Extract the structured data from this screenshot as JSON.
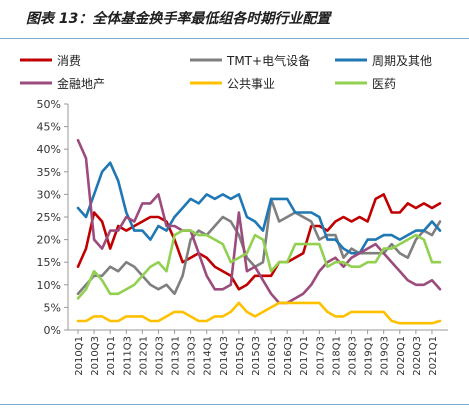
{
  "figure": {
    "title": "图表 13：全体基金换手率最低组各时期行业配置"
  },
  "chart_data": {
    "type": "line",
    "title": "图表 13：全体基金换手率最低组各时期行业配置",
    "xlabel": "",
    "ylabel": "",
    "ylim": [
      0,
      50
    ],
    "yticks": [
      "0%",
      "5%",
      "10%",
      "15%",
      "20%",
      "25%",
      "30%",
      "35%",
      "40%",
      "45%",
      "50%"
    ],
    "grid": false,
    "legend_position": "top",
    "x": [
      "2010Q1",
      "2010Q2",
      "2010Q3",
      "2010Q4",
      "2011Q1",
      "2011Q2",
      "2011Q3",
      "2011Q4",
      "2012Q1",
      "2012Q2",
      "2012Q3",
      "2012Q4",
      "2013Q1",
      "2013Q2",
      "2013Q3",
      "2013Q4",
      "2014Q1",
      "2014Q2",
      "2014Q3",
      "2014Q4",
      "2015Q1",
      "2015Q2",
      "2015Q3",
      "2015Q4",
      "2016Q1",
      "2016Q2",
      "2016Q3",
      "2016Q4",
      "2017Q1",
      "2017Q2",
      "2017Q3",
      "2017Q4",
      "2018Q1",
      "2018Q2",
      "2018Q3",
      "2018Q4",
      "2019Q1",
      "2019Q2",
      "2019Q3",
      "2019Q4",
      "2020Q1",
      "2020Q2",
      "2020Q3",
      "2020Q4",
      "2021Q1",
      "2021Q2"
    ],
    "xtick_labels": [
      "2010Q1",
      "2010Q3",
      "2011Q1",
      "2011Q3",
      "2012Q1",
      "2012Q3",
      "2013Q1",
      "2013Q3",
      "2014Q1",
      "2014Q3",
      "2015Q1",
      "2015Q3",
      "2016Q1",
      "2016Q3",
      "2017Q1",
      "2017Q3",
      "2018Q1",
      "2018Q3",
      "2019Q1",
      "2019Q3",
      "2020Q1",
      "2020Q3",
      "2021Q1"
    ],
    "series": [
      {
        "name": "消费",
        "color": "#c00000",
        "values": [
          14,
          18,
          26,
          24,
          18,
          23,
          22,
          23,
          24,
          25,
          25,
          24,
          20,
          15,
          16,
          17,
          16,
          14,
          13,
          12,
          9,
          10,
          12,
          12,
          12,
          15,
          15,
          16,
          17,
          23,
          23,
          22,
          24,
          25,
          24,
          25,
          24,
          29,
          30,
          26,
          26,
          28,
          27,
          28,
          27,
          28
        ]
      },
      {
        "name": "TMT+电气设备",
        "color": "#7f7f7f",
        "values": [
          8,
          10,
          12,
          12,
          14,
          13,
          15,
          14,
          12,
          10,
          9,
          10,
          8,
          12,
          20,
          22,
          21,
          23,
          25,
          24,
          21,
          16,
          14,
          15,
          29,
          24,
          25,
          26,
          25,
          24,
          20,
          21,
          21,
          16,
          18,
          17,
          17,
          17,
          17,
          19,
          17,
          16,
          20,
          22,
          21,
          24
        ]
      },
      {
        "name": "周期及其他",
        "color": "#1f77b4",
        "values": [
          27,
          25,
          30,
          35,
          37,
          33,
          26,
          22,
          22,
          20,
          23,
          22,
          25,
          27,
          29,
          28,
          30,
          29,
          30,
          29,
          30,
          25,
          24,
          22,
          29,
          29,
          29,
          26,
          26,
          26,
          25,
          20,
          20,
          18,
          17,
          17,
          20,
          20,
          21,
          21,
          20,
          21,
          22,
          22,
          24,
          22
        ]
      },
      {
        "name": "金融地产",
        "color": "#9c4b7d",
        "values": [
          42,
          38,
          20,
          18,
          22,
          22,
          25,
          24,
          28,
          28,
          30,
          23,
          23,
          22,
          22,
          17,
          12,
          9,
          9,
          10,
          26,
          13,
          14,
          11,
          8,
          6,
          6,
          7,
          8,
          10,
          13,
          15,
          16,
          14,
          16,
          17,
          18,
          19,
          17,
          15,
          13,
          11,
          10,
          10,
          11,
          9
        ]
      },
      {
        "name": "公共事业",
        "color": "#ffc000",
        "values": [
          2,
          2,
          3,
          3,
          2,
          2,
          3,
          3,
          3,
          2,
          2,
          3,
          4,
          4,
          3,
          2,
          2,
          3,
          3,
          4,
          6,
          4,
          3,
          4,
          5,
          6,
          6,
          6,
          6,
          6,
          6,
          4,
          3,
          3,
          4,
          4,
          4,
          4,
          4,
          2,
          1.5,
          1.5,
          1.5,
          1.5,
          1.5,
          2
        ]
      },
      {
        "name": "医药",
        "color": "#92d050",
        "values": [
          7,
          9,
          13,
          11,
          8,
          8,
          9,
          10,
          12,
          14,
          15,
          13,
          21,
          22,
          22,
          21,
          21,
          20,
          19,
          15,
          16,
          17,
          21,
          20,
          13,
          15,
          15,
          19,
          19,
          19,
          19,
          14,
          15,
          15,
          14,
          14,
          15,
          15,
          18,
          18,
          19,
          20,
          21,
          20,
          15,
          15
        ]
      }
    ]
  }
}
